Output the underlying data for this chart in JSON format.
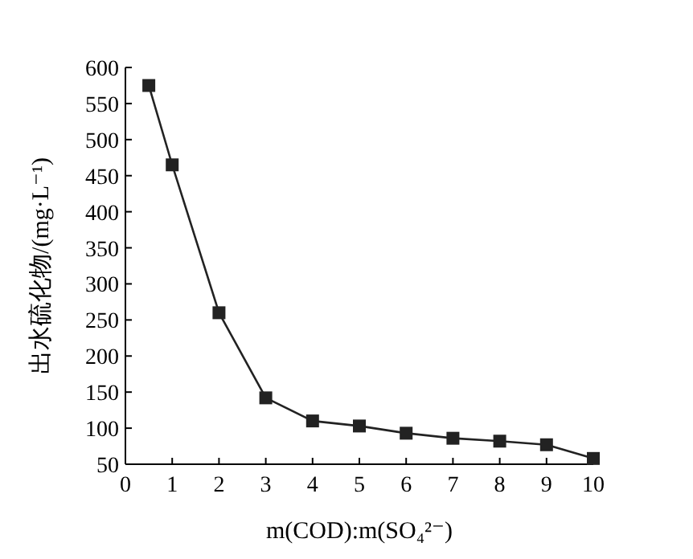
{
  "chart_data": {
    "type": "line",
    "xlabel": "m(COD):m(SO₄²⁻)",
    "ylabel": "出水硫化物/(mg·L⁻¹)",
    "x": [
      0.5,
      1,
      2,
      3,
      4,
      5,
      6,
      7,
      8,
      9,
      10
    ],
    "series": [
      {
        "color": "#222222",
        "values": [
          575,
          465,
          260,
          142,
          110,
          103,
          93,
          86,
          82,
          77,
          58
        ]
      }
    ],
    "xlim": [
      0,
      10
    ],
    "ylim": [
      50,
      600
    ],
    "xticks": [
      0,
      1,
      2,
      3,
      4,
      5,
      6,
      7,
      8,
      9,
      10
    ],
    "yticks": [
      50,
      100,
      150,
      200,
      250,
      300,
      350,
      400,
      450,
      500,
      550,
      600
    ],
    "marker": "square",
    "line_style": "solid"
  }
}
